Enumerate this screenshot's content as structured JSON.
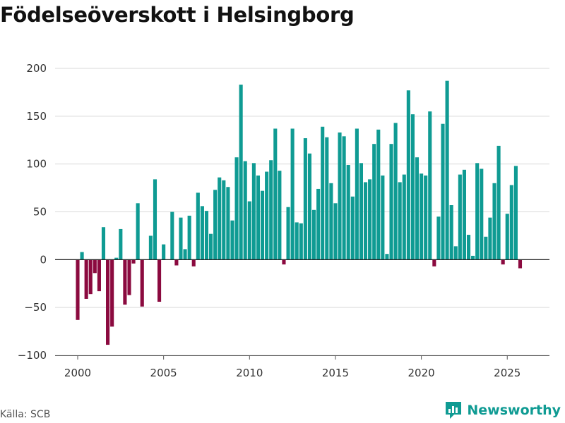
{
  "chart_data": {
    "type": "bar",
    "title": "Födelseöverskott i Helsingborg",
    "xlabel": "",
    "ylabel": "",
    "ylim": [
      -100,
      200
    ],
    "yticks": [
      -100,
      -50,
      0,
      50,
      100,
      150,
      200
    ],
    "ytick_labels": [
      "−100",
      "−50",
      "0",
      "50",
      "100",
      "150",
      "200"
    ],
    "xticks": [
      2000,
      2005,
      2010,
      2015,
      2020,
      2025
    ],
    "x_start": 2000.0,
    "x_step": 0.25,
    "positive_color": "#0f9b93",
    "negative_color": "#8b0a3f",
    "values": [
      -63,
      8,
      -41,
      -36,
      -14,
      -33,
      34,
      -89,
      -70,
      2,
      32,
      -47,
      -37,
      -4,
      59,
      -49,
      0,
      25,
      84,
      -44,
      16,
      0,
      50,
      -6,
      44,
      11,
      46,
      -7,
      70,
      56,
      51,
      27,
      73,
      86,
      83,
      76,
      41,
      107,
      183,
      103,
      61,
      101,
      88,
      72,
      92,
      104,
      137,
      93,
      -5,
      55,
      137,
      39,
      38,
      127,
      111,
      52,
      74,
      139,
      128,
      80,
      59,
      133,
      129,
      99,
      66,
      137,
      101,
      81,
      84,
      121,
      136,
      88,
      6,
      121,
      143,
      81,
      89,
      177,
      152,
      107,
      90,
      88,
      155,
      -7,
      45,
      142,
      187,
      57,
      14,
      89,
      94,
      26,
      4,
      101,
      95,
      24,
      44,
      80,
      119,
      -5,
      48,
      78,
      98,
      -9
    ]
  },
  "source": "Källa: SCB",
  "brand": "Newsworthy"
}
